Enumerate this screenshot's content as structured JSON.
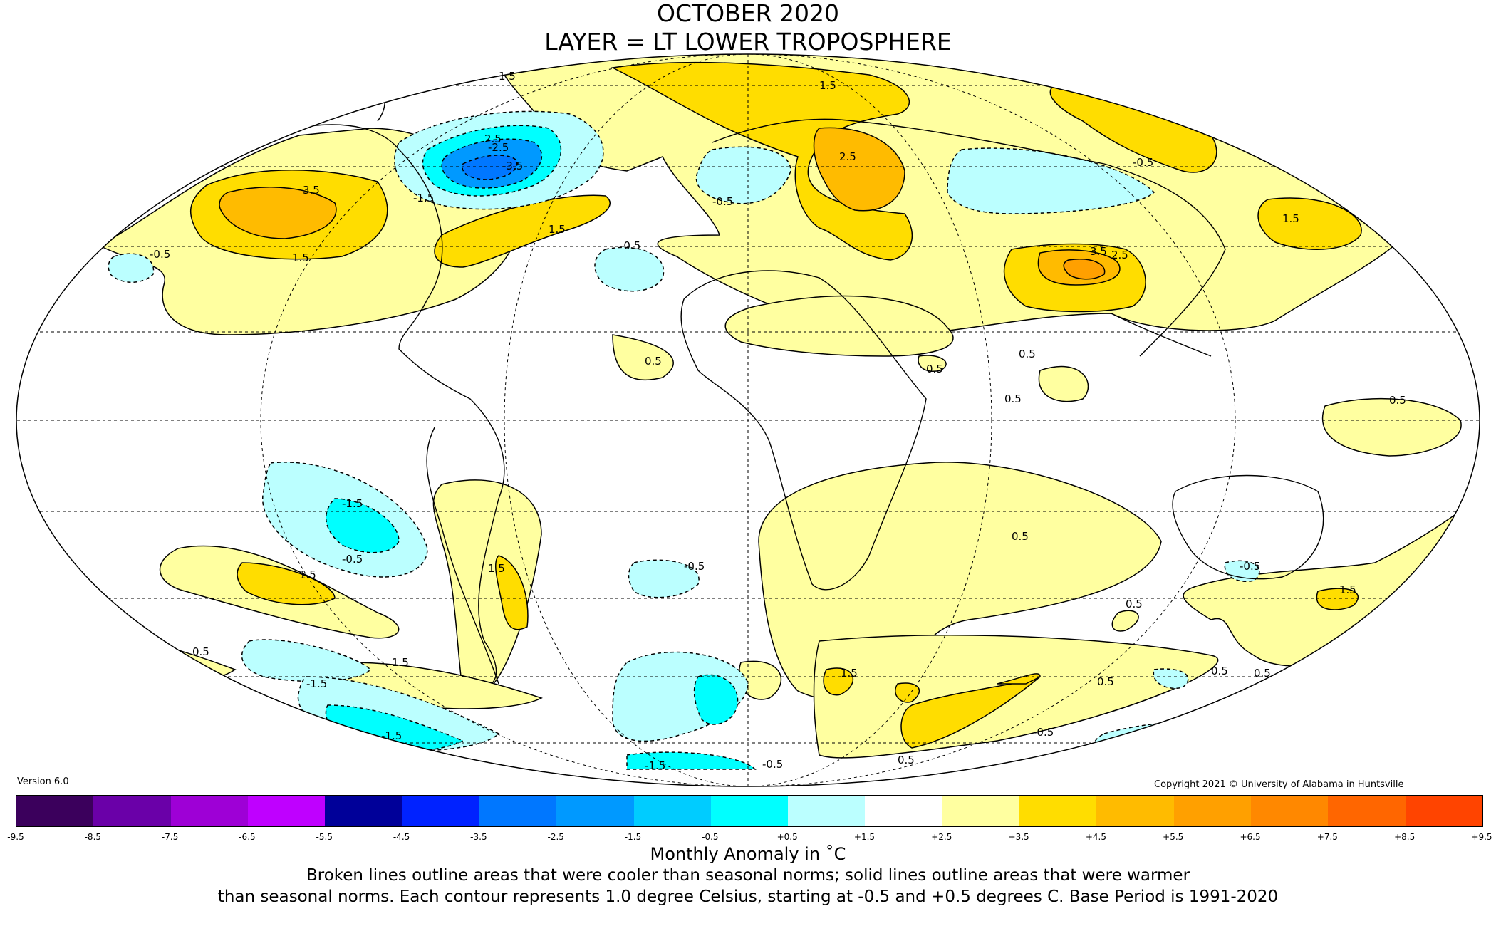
{
  "header": {
    "title": "OCTOBER 2020",
    "subtitle": "LAYER = LT LOWER TROPOSPHERE"
  },
  "version": "Version 6.0",
  "copyright": "Copyright 2021 © University of Alabama in Huntsville",
  "colorbar": {
    "label": "Monthly Anomaly in ˚C",
    "ticks": [
      "-9.5",
      "-8.5",
      "-7.5",
      "-6.5",
      "-5.5",
      "-4.5",
      "-3.5",
      "-2.5",
      "-1.5",
      "-0.5",
      "+0.5",
      "+1.5",
      "+2.5",
      "+3.5",
      "+4.5",
      "+5.5",
      "+6.5",
      "+7.5",
      "+8.5",
      "+9.5"
    ],
    "colors": [
      "#3b005c",
      "#6a00a8",
      "#9e00d6",
      "#bf00ff",
      "#000099",
      "#0022ff",
      "#0077ff",
      "#0099ff",
      "#00ccff",
      "#00ffff",
      "#bbffff",
      "#ffffff",
      "#ffffa0",
      "#ffdd00",
      "#ffbb00",
      "#ffa000",
      "#ff8800",
      "#ff6600",
      "#ff4400",
      "#ee0000",
      "#cc0000"
    ]
  },
  "notes": {
    "line1": "Broken lines outline areas that were cooler than seasonal norms; solid lines outline areas that were warmer",
    "line2": "than seasonal norms. Each contour represents 1.0 degree Celsius, starting at -0.5 and +0.5 degrees C. Base Period is 1991-2020"
  },
  "map_labels": [
    "1.5",
    "2.5",
    "3.5",
    "-2.5",
    "-3.5",
    "-1.5",
    "1.5",
    "-0.5",
    "1.5",
    "-0.5",
    "2.5",
    "1.5",
    "-0.5",
    "3.5",
    "2.5",
    "1.5",
    "0.5",
    "0.5",
    "0.5",
    "-0.5",
    "0.5",
    "0.5",
    "0.5",
    "0.5",
    "-1.5",
    "-0.5",
    "1.5",
    "-1.5",
    "-0.5",
    "0.5",
    "1.5",
    "0.5",
    "-1.5",
    "-0.5",
    "0.5",
    "1.5",
    "0.5",
    "-0.5",
    "-1.5",
    "1.5",
    "0.5",
    "-0.5",
    "1.5"
  ],
  "anomaly_regions": [
    {
      "region": "north-america-west",
      "anomaly": 3.5
    },
    {
      "region": "greenland-labrador",
      "anomaly": -3.5
    },
    {
      "region": "north-atlantic-west",
      "anomaly": 1.5
    },
    {
      "region": "eastern-europe",
      "anomaly": 2.5
    },
    {
      "region": "siberia-north",
      "anomaly": 1.5
    },
    {
      "region": "central-asia",
      "anomaly": 3.5
    },
    {
      "region": "south-pacific",
      "anomaly": -1.5
    },
    {
      "region": "antarctic-ocean",
      "anomaly": -1.5
    }
  ]
}
